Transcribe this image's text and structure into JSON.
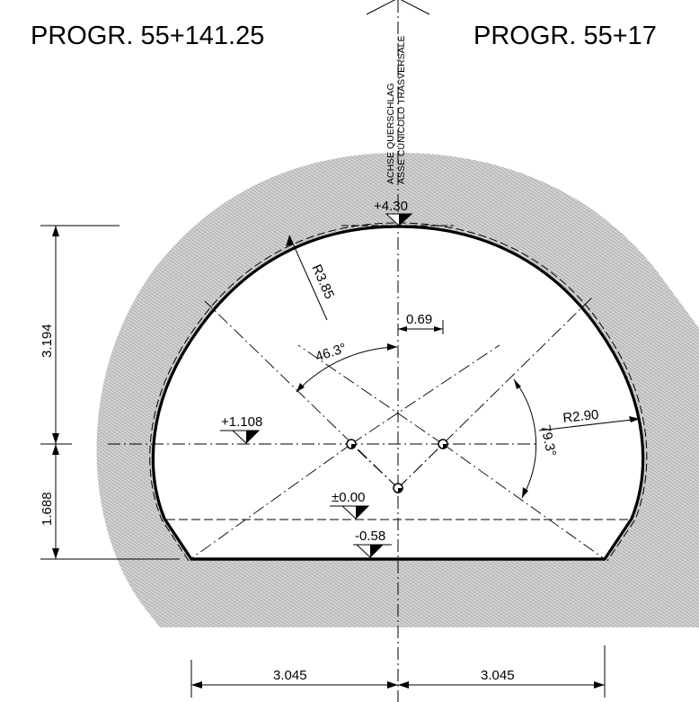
{
  "titles": {
    "left": "PROGR. 55+141.25",
    "right": "PROGR. 55+17"
  },
  "axis_label": {
    "line1": "ACHSE QUERSCHLAG",
    "line2": "ASSE CUNICOLO TRASVERSALE"
  },
  "levels": {
    "crown": "+4.30",
    "springline": "+1.108",
    "zero": "±0.00",
    "invert": "-0.58"
  },
  "dimensions": {
    "upper_height": "3.194",
    "lower_height": "1.688",
    "half_width_left": "3.045",
    "half_width_right": "3.045",
    "offset": "0.69"
  },
  "radii": {
    "crown_radius": "R3.85",
    "side_radius": "R2.90"
  },
  "angles": {
    "crown_angle": "46.3°",
    "side_angle": "79.3°"
  },
  "colors": {
    "rock_hatch": "#b8b8b8",
    "lining": "#000000"
  }
}
